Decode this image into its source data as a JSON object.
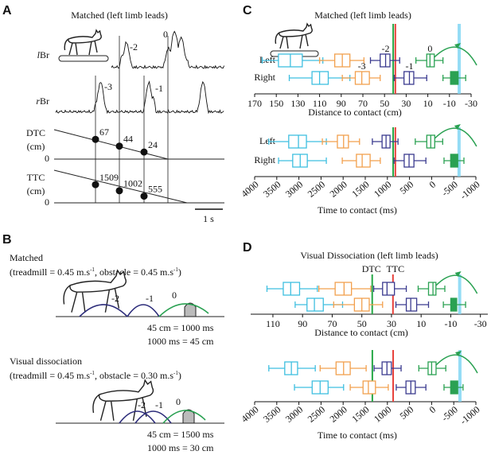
{
  "panel_labels": [
    "A",
    "B",
    "C",
    "D"
  ],
  "panel_a": {
    "title": "Matched (left limb leads)",
    "emg": [
      {
        "label": [
          "l",
          "Br"
        ],
        "steps": [
          "-2",
          "0"
        ]
      },
      {
        "label": [
          "r",
          "Br"
        ],
        "steps": [
          "-3",
          "-1"
        ]
      }
    ],
    "dtc": {
      "label": [
        "DTC",
        "(cm)"
      ],
      "zero": 0,
      "values": [
        67,
        44,
        24
      ]
    },
    "ttc": {
      "label": [
        "TTC",
        "(cm)"
      ],
      "zero": 0,
      "values": [
        1509,
        1002,
        555
      ]
    },
    "scale_bar": "1 s"
  },
  "panel_b": {
    "conditions": [
      {
        "title": "Matched",
        "params": [
          "(treadmill = 0.45 m.s",
          "-1",
          ", obstacle = 0.45 m.s",
          "-1",
          ")"
        ],
        "steps": [
          "-2",
          "-1",
          "0"
        ],
        "equivalences": [
          "45 cm = 1000 ms",
          "1000 ms = 45 cm"
        ]
      },
      {
        "title": "Visual dissociation",
        "params": [
          "(treadmill = 0.45 m.s",
          "-1",
          ", obstacle = 0.30 m.s",
          "-1",
          ")"
        ],
        "steps": [
          "-2",
          "-1",
          "0"
        ],
        "equivalences": [
          "45 cm = 1500 ms",
          "1000 ms = 30 cm"
        ]
      }
    ]
  },
  "chart_data": [
    {
      "type": "box",
      "title": "Matched (left limb leads)",
      "x_label": "Distance to contact (cm)",
      "categories": [
        "Left",
        "Right"
      ],
      "xlim": [
        170,
        -30
      ],
      "xticks": [
        170,
        150,
        130,
        110,
        90,
        70,
        50,
        30,
        10,
        -10,
        -30
      ],
      "series": [
        {
          "color": "#3fbfe0",
          "values": [
            [
              163,
              148,
              137,
              126,
              107
            ],
            [
              138,
              117,
              110,
              102,
              82
            ]
          ],
          "labels": [
            null,
            null
          ],
          "filled": [
            false,
            false
          ]
        },
        {
          "color": "#f2a04e",
          "values": [
            [
              110,
              96,
              89,
              82,
              69
            ],
            [
              89,
              77,
              71,
              64,
              54
            ]
          ],
          "labels": [
            null,
            "-3"
          ],
          "filled": [
            false,
            false
          ]
        },
        {
          "color": "#3b3b8f",
          "values": [
            [
              63,
              54,
              49,
              45,
              36
            ],
            [
              41,
              32,
              27,
              23,
              11
            ]
          ],
          "labels": [
            "-2",
            "-1"
          ],
          "filled": [
            false,
            false
          ]
        },
        {
          "color": "#2aa152",
          "values": [
            [
              21,
              11,
              8,
              4,
              -4
            ],
            [
              -4,
              -11,
              -14,
              -18,
              -25
            ]
          ],
          "labels": [
            "0",
            null
          ],
          "filled": [
            false,
            true
          ]
        }
      ],
      "reference_lines": [
        {
          "value": 42,
          "color": "#27a847"
        },
        {
          "value": 40,
          "color": "#e8413b"
        },
        {
          "value": -19,
          "color": "#79d3f2"
        }
      ]
    },
    {
      "type": "box",
      "x_label": "Time to contact (ms)",
      "categories": [
        "Left",
        "Right"
      ],
      "xlim": [
        4000,
        -1000
      ],
      "xticks": [
        4000,
        3500,
        3000,
        2500,
        2000,
        1500,
        1000,
        500,
        0,
        -500,
        -1000
      ],
      "series": [
        {
          "color": "#3fbfe0",
          "values": [
            [
              3680,
              3230,
              3010,
              2830,
              2380
            ],
            [
              3460,
              3140,
              2970,
              2810,
              2380
            ]
          ],
          "filled": [
            false,
            false
          ]
        },
        {
          "color": "#f2a04e",
          "values": [
            [
              2470,
              2130,
              1990,
              1880,
              1630
            ],
            [
              2020,
              1700,
              1570,
              1390,
              1160
            ]
          ],
          "filled": [
            false,
            false
          ]
        },
        {
          "color": "#3b3b8f",
          "values": [
            [
              1340,
              1120,
              1030,
              940,
              760
            ],
            [
              850,
              620,
              510,
              400,
              130
            ]
          ],
          "filled": [
            false,
            false
          ]
        },
        {
          "color": "#2aa152",
          "values": [
            [
              370,
              110,
              20,
              -70,
              -250
            ],
            [
              -280,
              -430,
              -500,
              -590,
              -730
            ]
          ],
          "filled": [
            false,
            true
          ]
        }
      ],
      "reference_lines": [
        {
          "value": 870,
          "color": "#27a847"
        },
        {
          "value": 820,
          "color": "#e8413b"
        },
        {
          "value": -620,
          "color": "#79d3f2"
        }
      ]
    },
    {
      "type": "box",
      "title": "Visual Dissociation (left limb leads)",
      "x_label": "Distance to contact (cm)",
      "xlim": [
        125,
        -35
      ],
      "xticks": [
        110,
        90,
        70,
        50,
        30,
        10,
        -10,
        -30
      ],
      "series": [
        {
          "color": "#3fbfe0",
          "values": [
            [
              114,
              103,
              98,
              92,
              80
            ],
            [
              95,
              87,
              82,
              76,
              63
            ]
          ],
          "filled": [
            false,
            false
          ]
        },
        {
          "color": "#f2a04e",
          "values": [
            [
              79,
              68,
              62,
              57,
              44
            ],
            [
              69,
              55,
              50,
              45,
              36
            ]
          ],
          "filled": [
            false,
            false
          ]
        },
        {
          "color": "#3b3b8f",
          "values": [
            [
              42,
              36,
              33,
              28,
              20
            ],
            [
              27,
              20,
              17,
              13,
              5
            ]
          ],
          "filled": [
            false,
            false
          ]
        },
        {
          "color": "#2aa152",
          "values": [
            [
              12,
              5,
              2,
              0,
              -6
            ],
            [
              -5,
              -10,
              -12,
              -14,
              -20
            ]
          ],
          "filled": [
            false,
            true
          ]
        }
      ],
      "reference_lines": [
        {
          "value": 43,
          "color": "#27a847",
          "label": "DTC"
        },
        {
          "value": 29,
          "color": "#e8413b",
          "label": "TTC"
        },
        {
          "value": -16,
          "color": "#79d3f2"
        }
      ]
    },
    {
      "type": "box",
      "x_label": "Time to contact (ms)",
      "xlim": [
        4000,
        -1000
      ],
      "xticks": [
        4000,
        3500,
        3000,
        2500,
        2000,
        1500,
        1000,
        500,
        0,
        -500,
        -1000
      ],
      "series": [
        {
          "color": "#3fbfe0",
          "values": [
            [
              3680,
              3320,
              3170,
              3030,
              2630
            ],
            [
              3100,
              2700,
              2520,
              2340,
              1990
            ]
          ],
          "filled": [
            false,
            false
          ]
        },
        {
          "color": "#f2a04e",
          "values": [
            [
              2520,
              2160,
              1990,
              1840,
              1480
            ],
            [
              1840,
              1550,
              1430,
              1270,
              980
            ]
          ],
          "filled": [
            false,
            false
          ]
        },
        {
          "color": "#3b3b8f",
          "values": [
            [
              1300,
              1120,
              1010,
              910,
              690
            ],
            [
              800,
              580,
              470,
              370,
              130
            ]
          ],
          "filled": [
            false,
            false
          ]
        },
        {
          "color": "#2aa152",
          "values": [
            [
              290,
              80,
              0,
              -100,
              -320
            ],
            [
              -280,
              -430,
              -500,
              -590,
              -710
            ]
          ],
          "filled": [
            false,
            true
          ]
        }
      ],
      "reference_lines": [
        {
          "value": 1340,
          "color": "#27a847"
        },
        {
          "value": 870,
          "color": "#e8413b"
        },
        {
          "value": -640,
          "color": "#79d3f2"
        }
      ]
    }
  ]
}
